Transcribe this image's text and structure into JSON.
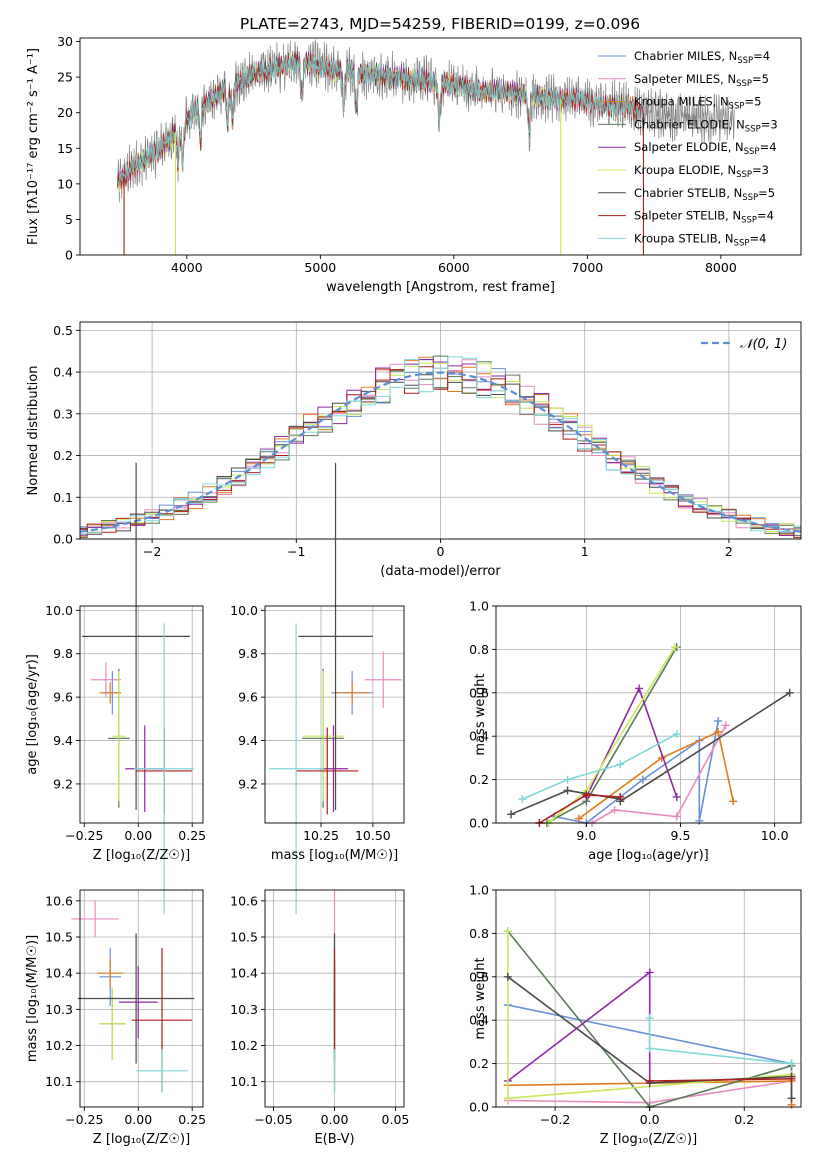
{
  "colors": {
    "Chabrier MILES": "#6a90d8",
    "Salpeter MILES": "#e88cc0",
    "Kroupa MILES": "#e07b1f",
    "Chabrier ELODIE": "#5a7a5a",
    "Salpeter ELODIE": "#8e2aa8",
    "Kroupa ELODIE": "#c9e85a",
    "Chabrier STELIB": "#4a4a4a",
    "Salpeter STELIB": "#b01c1c",
    "Kroupa STELIB": "#7fd8d8",
    "normal": "#5b8ed6",
    "grid": "#b0b0b0"
  },
  "chart_data": [
    {
      "id": "spectrum",
      "type": "line",
      "title": "PLATE=2743, MJD=54259, FIBERID=0199, z=0.096",
      "xlabel": "wavelength [Angstrom, rest frame]",
      "ylabel": "Flux [fλ10⁻¹⁷ erg cm⁻² s⁻¹ A⁻¹]",
      "xlim": [
        3200,
        8600
      ],
      "ylim": [
        0,
        30.5
      ],
      "xticks": [
        4000,
        5000,
        6000,
        7000,
        8000
      ],
      "yticks": [
        0,
        5,
        10,
        15,
        20,
        25,
        30
      ],
      "grid": false,
      "legend_position": "top-right",
      "continuum": {
        "x": [
          3480,
          3600,
          3700,
          3800,
          3900,
          4000,
          4100,
          4200,
          4300,
          4400,
          4500,
          4600,
          4700,
          4800,
          4900,
          5000,
          5100,
          5200,
          5300,
          5400,
          5500,
          5600,
          5700,
          5800,
          5900,
          6000,
          6100,
          6200,
          6300,
          6400,
          6500,
          6600,
          6700,
          6800,
          6900,
          7000,
          7100,
          7200,
          7300,
          7400
        ],
        "y": [
          10,
          12.5,
          13.5,
          15,
          17,
          19,
          21,
          22,
          23.5,
          24.5,
          25.5,
          26,
          26.5,
          27,
          27,
          26.5,
          26,
          26,
          25.5,
          25.5,
          25,
          25,
          24.5,
          24.5,
          24,
          24,
          23.5,
          23,
          23,
          23,
          22.5,
          22.5,
          22,
          22,
          22,
          21.5,
          21,
          21,
          21,
          20
        ]
      },
      "absorption_lines": [
        3934,
        3969,
        4102,
        4305,
        4341,
        4861,
        5175,
        5270,
        5890,
        6563
      ],
      "drop_lines": [
        {
          "series": "Salpeter STELIB",
          "x": 3530
        },
        {
          "series": "Kroupa ELODIE",
          "x": 3915
        },
        {
          "series": "Kroupa ELODIE",
          "x": 6800
        },
        {
          "series": "Salpeter STELIB",
          "x": 7420
        }
      ],
      "series": [
        {
          "name": "Chabrier MILES, NSSP=4",
          "label_main": "Chabrier MILES, N",
          "label_sub": "SSP",
          "label_end": "=4",
          "key": "Chabrier MILES",
          "x_end": 7400
        },
        {
          "name": "Salpeter MILES, NSSP=5",
          "label_main": "Salpeter MILES, N",
          "label_sub": "SSP",
          "label_end": "=5",
          "key": "Salpeter MILES",
          "x_end": 7400
        },
        {
          "name": "Kroupa MILES, NSSP=5",
          "label_main": "Kroupa MILES, N",
          "label_sub": "SSP",
          "label_end": "=5",
          "key": "Kroupa MILES",
          "x_end": 7400
        },
        {
          "name": "Chabrier ELODIE, NSSP=3",
          "label_main": "Chabrier ELODIE, N",
          "label_sub": "SSP",
          "label_end": "=3",
          "key": "Chabrier ELODIE",
          "x_end": 6800
        },
        {
          "name": "Salpeter ELODIE, NSSP=4",
          "label_main": "Salpeter ELODIE, N",
          "label_sub": "SSP",
          "label_end": "=4",
          "key": "Salpeter ELODIE",
          "x_end": 6800
        },
        {
          "name": "Kroupa ELODIE, NSSP=3",
          "label_main": "Kroupa ELODIE, N",
          "label_sub": "SSP",
          "label_end": "=3",
          "key": "Kroupa ELODIE",
          "x_end": 6800
        },
        {
          "name": "Chabrier STELIB, NSSP=5",
          "label_main": "Chabrier STELIB, N",
          "label_sub": "SSP",
          "label_end": "=5",
          "key": "Chabrier STELIB",
          "x_end": 7420
        },
        {
          "name": "Salpeter STELIB, NSSP=4",
          "label_main": "Salpeter STELIB, N",
          "label_sub": "SSP",
          "label_end": "=4",
          "key": "Salpeter STELIB",
          "x_end": 7420
        },
        {
          "name": "Kroupa STELIB, NSSP=4",
          "label_main": "Kroupa STELIB, N",
          "label_sub": "SSP",
          "label_end": "=4",
          "key": "Kroupa STELIB",
          "x_end": 7420
        }
      ],
      "data_series": {
        "name": "data",
        "color": "#808080",
        "x_end": 8100
      }
    },
    {
      "id": "residuals",
      "type": "line",
      "xlabel": "(data-model)/error",
      "ylabel": "Normed distribution",
      "xlim": [
        -2.5,
        2.5
      ],
      "ylim": [
        0,
        0.52
      ],
      "xticks": [
        -2,
        -1,
        0,
        1,
        2
      ],
      "xtick_labels": [
        "−2",
        "−1",
        "0",
        "1",
        "2"
      ],
      "yticks": [
        0,
        0.1,
        0.2,
        0.3,
        0.4,
        0.5
      ],
      "ytick_labels": [
        "0.0",
        "0.1",
        "0.2",
        "0.3",
        "0.4",
        "0.5"
      ],
      "grid": true,
      "legend_position": "top-right",
      "legend": {
        "label": "𝒩(0, 1)",
        "style": "dashed"
      },
      "bin_width": 0.1
    },
    {
      "id": "age_vs_Z",
      "type": "scatter",
      "xlabel": "Z [log₁₀(Z/Z☉)]",
      "ylabel": "age  [log₁₀(age/yr)]",
      "xlim": [
        -0.27,
        0.3
      ],
      "ylim": [
        9.02,
        10.02
      ],
      "xticks": [
        -0.25,
        0,
        0.25
      ],
      "xtick_labels": [
        "−0.25",
        "0.00",
        "0.25"
      ],
      "yticks": [
        9.2,
        9.4,
        9.6,
        9.8,
        10.0
      ],
      "ytick_labels": [
        "9.2",
        "9.4",
        "9.6",
        "9.8",
        "10.0"
      ],
      "grid": true,
      "points": [
        {
          "key": "Chabrier MILES",
          "x": -0.12,
          "xerr": 0.04,
          "y": 9.62,
          "yerr": 0.1
        },
        {
          "key": "Salpeter MILES",
          "x": -0.15,
          "xerr": 0.07,
          "y": 9.68,
          "yerr": 0.08
        },
        {
          "key": "Kroupa MILES",
          "x": -0.13,
          "xerr": 0.05,
          "y": 9.62,
          "yerr": 0.05
        },
        {
          "key": "Chabrier ELODIE",
          "x": -0.09,
          "xerr": 0.05,
          "y": 9.41,
          "yerr": 0.32
        },
        {
          "key": "Salpeter ELODIE",
          "x": 0.03,
          "xerr": 0.09,
          "y": 9.27,
          "yerr": 0.2
        },
        {
          "key": "Kroupa ELODIE",
          "x": -0.09,
          "xerr": 0.03,
          "y": 9.42,
          "yerr": 0.3
        },
        {
          "key": "Chabrier STELIB",
          "x": -0.01,
          "xerr": 0.25,
          "y": 9.88,
          "yerr": 0.8
        },
        {
          "key": "Salpeter STELIB",
          "x": 0.12,
          "xerr": 0.13,
          "y": 9.26,
          "yerr": 0.2
        },
        {
          "key": "Kroupa STELIB",
          "x": 0.12,
          "xerr": 0.14,
          "y": 9.27,
          "yerr": 0.67
        }
      ]
    },
    {
      "id": "age_vs_mass",
      "type": "scatter",
      "xlabel": "mass [log₁₀(M/M☉)]",
      "xlim": [
        9.98,
        10.65
      ],
      "ylim": [
        9.02,
        10.02
      ],
      "xticks": [
        10.25,
        10.5
      ],
      "xtick_labels": [
        "10.25",
        "10.50"
      ],
      "yticks": [
        9.2,
        9.4,
        9.6,
        9.8,
        10.0
      ],
      "ytick_labels": [
        "9.2",
        "9.4",
        "9.6",
        "9.8",
        "10.0"
      ],
      "grid": true,
      "points": [
        {
          "key": "Chabrier MILES",
          "x": 10.4,
          "xerr": 0.1,
          "y": 9.62,
          "yerr": 0.1
        },
        {
          "key": "Salpeter MILES",
          "x": 10.55,
          "xerr": 0.09,
          "y": 9.68,
          "yerr": 0.13
        },
        {
          "key": "Kroupa MILES",
          "x": 10.4,
          "xerr": 0.08,
          "y": 9.62,
          "yerr": 0.05
        },
        {
          "key": "Chabrier ELODIE",
          "x": 10.26,
          "xerr": 0.1,
          "y": 9.41,
          "yerr": 0.32
        },
        {
          "key": "Salpeter ELODIE",
          "x": 10.31,
          "xerr": 0.07,
          "y": 9.27,
          "yerr": 0.2
        },
        {
          "key": "Kroupa ELODIE",
          "x": 10.26,
          "xerr": 0.1,
          "y": 9.42,
          "yerr": 0.3
        },
        {
          "key": "Chabrier STELIB",
          "x": 10.32,
          "xerr": 0.18,
          "y": 9.88,
          "yerr": 0.8
        },
        {
          "key": "Salpeter STELIB",
          "x": 10.28,
          "xerr": 0.15,
          "y": 9.26,
          "yerr": 0.2
        },
        {
          "key": "Kroupa STELIB",
          "x": 10.13,
          "xerr": 0.13,
          "y": 9.27,
          "yerr": 0.67
        }
      ]
    },
    {
      "id": "weight_vs_age",
      "type": "line",
      "xlabel": "age  [log₁₀(age/yr)]",
      "ylabel": "mass weight",
      "xlim": [
        8.52,
        10.14
      ],
      "ylim": [
        0,
        1.0
      ],
      "xticks": [
        9.0,
        9.5,
        10.0
      ],
      "xtick_labels": [
        "9.0",
        "9.5",
        "10.0"
      ],
      "yticks": [
        0,
        0.2,
        0.4,
        0.6,
        0.8,
        1.0
      ],
      "ytick_labels": [
        "0.0",
        "0.2",
        "0.4",
        "0.6",
        "0.8",
        "1.0"
      ],
      "grid": true,
      "series": [
        {
          "key": "Chabrier MILES",
          "x": [
            8.83,
            9.0,
            9.3,
            9.6,
            9.6,
            9.7
          ],
          "y": [
            0.03,
            0.0,
            0.2,
            0.38,
            0.01,
            0.47
          ]
        },
        {
          "key": "Salpeter MILES",
          "x": [
            9.03,
            9.15,
            9.48,
            9.74
          ],
          "y": [
            0.0,
            0.06,
            0.03,
            0.45
          ]
        },
        {
          "key": "Kroupa MILES",
          "x": [
            8.96,
            9.4,
            9.7,
            9.78
          ],
          "y": [
            0.02,
            0.3,
            0.42,
            0.1
          ]
        },
        {
          "key": "Chabrier ELODIE",
          "x": [
            8.79,
            9.0,
            9.48
          ],
          "y": [
            0.0,
            0.1,
            0.81
          ]
        },
        {
          "key": "Salpeter ELODIE",
          "x": [
            9.0,
            9.28,
            9.48
          ],
          "y": [
            0.12,
            0.62,
            0.12
          ]
        },
        {
          "key": "Kroupa ELODIE",
          "x": [
            8.8,
            9.0,
            9.47
          ],
          "y": [
            0.0,
            0.15,
            0.81
          ]
        },
        {
          "key": "Chabrier STELIB",
          "x": [
            8.6,
            8.9,
            9.18,
            9.18,
            10.08
          ],
          "y": [
            0.04,
            0.15,
            0.11,
            0.1,
            0.6
          ]
        },
        {
          "key": "Salpeter STELIB",
          "x": [
            8.75,
            9.0,
            9.18
          ],
          "y": [
            0.0,
            0.13,
            0.12
          ]
        },
        {
          "key": "Kroupa STELIB",
          "x": [
            8.66,
            8.9,
            9.18,
            9.48
          ],
          "y": [
            0.11,
            0.2,
            0.27,
            0.41
          ]
        }
      ]
    },
    {
      "id": "mass_vs_Z",
      "type": "scatter",
      "xlabel": "Z [log₁₀(Z/Z☉)]",
      "ylabel": "mass [log₁₀(M/M☉)]",
      "xlim": [
        -0.27,
        0.3
      ],
      "ylim": [
        10.03,
        10.63
      ],
      "xticks": [
        -0.25,
        0,
        0.25
      ],
      "xtick_labels": [
        "−0.25",
        "0.00",
        "0.25"
      ],
      "yticks": [
        10.1,
        10.2,
        10.3,
        10.4,
        10.5,
        10.6
      ],
      "ytick_labels": [
        "10.1",
        "10.2",
        "10.3",
        "10.4",
        "10.5",
        "10.6"
      ],
      "grid": true,
      "points": [
        {
          "key": "Chabrier MILES",
          "x": -0.13,
          "xerr": 0.05,
          "y": 10.39,
          "yerr": 0.08
        },
        {
          "key": "Salpeter MILES",
          "x": -0.2,
          "xerr": 0.11,
          "y": 10.55,
          "yerr": 0.05
        },
        {
          "key": "Kroupa MILES",
          "x": -0.13,
          "xerr": 0.06,
          "y": 10.4,
          "yerr": 0.04
        },
        {
          "key": "Chabrier ELODIE",
          "x": -0.12,
          "xerr": 0.06,
          "y": 10.26,
          "yerr": 0.1
        },
        {
          "key": "Salpeter ELODIE",
          "x": 0.0,
          "xerr": 0.09,
          "y": 10.32,
          "yerr": 0.1
        },
        {
          "key": "Kroupa ELODIE",
          "x": -0.12,
          "xerr": 0.06,
          "y": 10.26,
          "yerr": 0.1
        },
        {
          "key": "Chabrier STELIB",
          "x": -0.01,
          "xerr": 0.27,
          "y": 10.33,
          "yerr": 0.18
        },
        {
          "key": "Salpeter STELIB",
          "x": 0.11,
          "xerr": 0.14,
          "y": 10.27,
          "yerr": 0.2
        },
        {
          "key": "Kroupa STELIB",
          "x": 0.11,
          "xerr": 0.12,
          "y": 10.13,
          "yerr": 0.06
        }
      ]
    },
    {
      "id": "mass_vs_EBV",
      "type": "scatter",
      "xlabel": "E(B-V)",
      "xlim": [
        -0.057,
        0.057
      ],
      "ylim": [
        10.03,
        10.63
      ],
      "xticks": [
        -0.05,
        0,
        0.05
      ],
      "xtick_labels": [
        "−0.05",
        "0.00",
        "0.05"
      ],
      "yticks": [
        10.1,
        10.2,
        10.3,
        10.4,
        10.5,
        10.6
      ],
      "ytick_labels": [
        "10.1",
        "10.2",
        "10.3",
        "10.4",
        "10.5",
        "10.6"
      ],
      "grid": true,
      "points": [
        {
          "key": "Chabrier MILES",
          "x": 0,
          "xerr": 0,
          "y": 10.39,
          "yerr": 0.08
        },
        {
          "key": "Salpeter MILES",
          "x": 0,
          "xerr": 0,
          "y": 10.55,
          "yerr": 0.08
        },
        {
          "key": "Kroupa MILES",
          "x": 0,
          "xerr": 0,
          "y": 10.4,
          "yerr": 0.04
        },
        {
          "key": "Chabrier ELODIE",
          "x": 0,
          "xerr": 0,
          "y": 10.26,
          "yerr": 0.1
        },
        {
          "key": "Salpeter ELODIE",
          "x": 0,
          "xerr": 0,
          "y": 10.32,
          "yerr": 0.1
        },
        {
          "key": "Kroupa ELODIE",
          "x": 0,
          "xerr": 0,
          "y": 10.26,
          "yerr": 0.1
        },
        {
          "key": "Chabrier STELIB",
          "x": 0,
          "xerr": 0,
          "y": 10.33,
          "yerr": 0.18
        },
        {
          "key": "Salpeter STELIB",
          "x": 0,
          "xerr": 0,
          "y": 10.27,
          "yerr": 0.2
        },
        {
          "key": "Kroupa STELIB",
          "x": 0,
          "xerr": 0,
          "y": 10.13,
          "yerr": 0.06
        }
      ]
    },
    {
      "id": "weight_vs_Z",
      "type": "line",
      "xlabel": "Z [log₁₀(Z/Z☉)]",
      "ylabel": "mass weight",
      "xlim": [
        -0.325,
        0.32
      ],
      "ylim": [
        0,
        1.0
      ],
      "xticks": [
        -0.2,
        0,
        0.2
      ],
      "xtick_labels": [
        "−0.2",
        "0.0",
        "0.2"
      ],
      "yticks": [
        0,
        0.2,
        0.4,
        0.6,
        0.8,
        1.0
      ],
      "ytick_labels": [
        "0.0",
        "0.2",
        "0.4",
        "0.6",
        "0.8",
        "1.0"
      ],
      "grid": true,
      "series": [
        {
          "key": "Chabrier MILES",
          "x": [
            -0.3,
            0.3,
            0.3
          ],
          "y": [
            0.47,
            0.2,
            0.15
          ]
        },
        {
          "key": "Salpeter MILES",
          "x": [
            -0.3,
            0.0,
            0.3
          ],
          "y": [
            0.03,
            0.02,
            0.12
          ]
        },
        {
          "key": "Kroupa MILES",
          "x": [
            -0.3,
            0.3,
            0.3
          ],
          "y": [
            0.1,
            0.12,
            0.01
          ]
        },
        {
          "key": "Chabrier ELODIE",
          "x": [
            -0.3,
            0.0,
            0.3
          ],
          "y": [
            0.81,
            0.0,
            0.19
          ]
        },
        {
          "key": "Salpeter ELODIE",
          "x": [
            -0.3,
            0.0,
            0.0
          ],
          "y": [
            0.12,
            0.62,
            0.12
          ]
        },
        {
          "key": "Kroupa ELODIE",
          "x": [
            -0.3,
            -0.3,
            0.3
          ],
          "y": [
            0.81,
            0.04,
            0.15
          ]
        },
        {
          "key": "Chabrier STELIB",
          "x": [
            -0.3,
            0.0,
            0.3,
            0.3
          ],
          "y": [
            0.6,
            0.11,
            0.14,
            0.04
          ]
        },
        {
          "key": "Salpeter STELIB",
          "x": [
            0.0,
            0.3
          ],
          "y": [
            0.12,
            0.13
          ]
        },
        {
          "key": "Kroupa STELIB",
          "x": [
            0.0,
            0.0,
            0.3
          ],
          "y": [
            0.41,
            0.27,
            0.2
          ]
        }
      ]
    }
  ]
}
